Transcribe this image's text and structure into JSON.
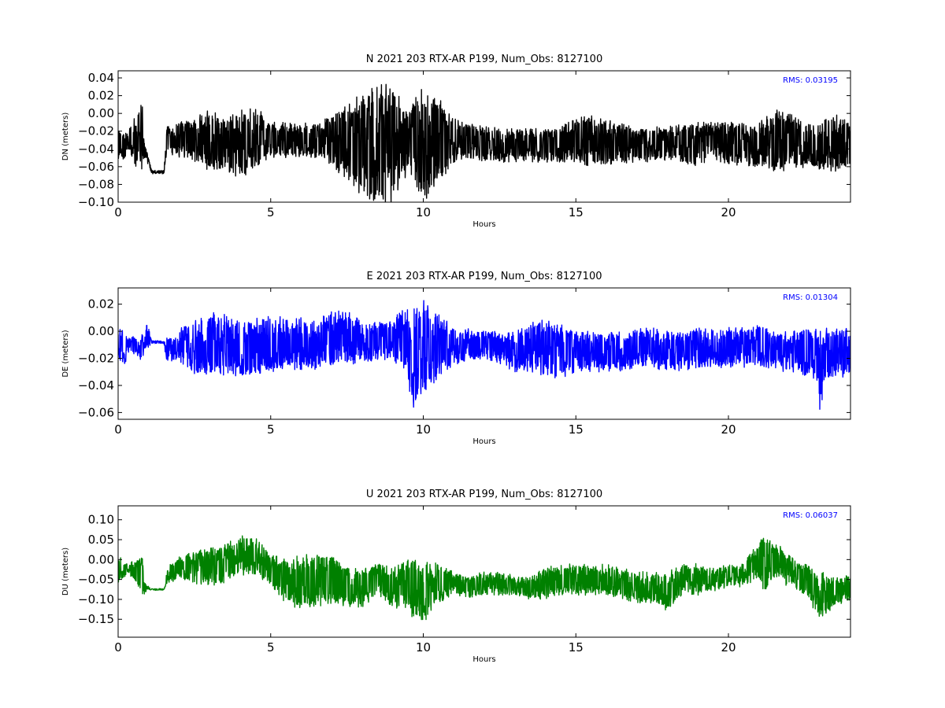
{
  "chart_data": [
    {
      "type": "line",
      "title": "N 2021 203 RTX-AR  P199, Num_Obs: 8127100",
      "xlabel": "Hours",
      "ylabel": "DN (meters)",
      "xlim": [
        0,
        24
      ],
      "ylim": [
        -0.1,
        0.048
      ],
      "xticks": [
        "0",
        "5",
        "10",
        "15",
        "20"
      ],
      "yticks": [
        "0.04",
        "0.02",
        "0.00",
        "−0.02",
        "−0.04",
        "−0.06",
        "−0.08",
        "−0.10"
      ],
      "annotation": "RMS:  0.03195",
      "color": "#000000",
      "series": [
        {
          "x": [
            0,
            0.1,
            0.2,
            0.3,
            0.8,
            0.85,
            1.1,
            1.5,
            1.6,
            2,
            2.5,
            3,
            3.5,
            4,
            4.5,
            5,
            5.5,
            6,
            6.5,
            7,
            7.5,
            8,
            8.5,
            9,
            9.5,
            10,
            10.5,
            11,
            11.5,
            12,
            12.5,
            13,
            13.5,
            14,
            14.5,
            15,
            15.5,
            16,
            16.5,
            17,
            17.5,
            18,
            18.5,
            19,
            19.5,
            20,
            20.5,
            21,
            21.5,
            22,
            22.5,
            23,
            23.5,
            24
          ],
          "center": [
            -0.04,
            -0.035,
            -0.04,
            -0.03,
            -0.03,
            -0.04,
            -0.066,
            -0.066,
            -0.03,
            -0.03,
            -0.03,
            -0.03,
            -0.035,
            -0.035,
            -0.025,
            -0.03,
            -0.03,
            -0.03,
            -0.03,
            -0.03,
            -0.03,
            -0.035,
            -0.035,
            -0.035,
            -0.03,
            -0.035,
            -0.03,
            -0.03,
            -0.03,
            -0.035,
            -0.035,
            -0.035,
            -0.035,
            -0.035,
            -0.035,
            -0.03,
            -0.03,
            -0.032,
            -0.035,
            -0.035,
            -0.035,
            -0.035,
            -0.032,
            -0.035,
            -0.03,
            -0.035,
            -0.035,
            -0.035,
            -0.03,
            -0.035,
            -0.035,
            -0.035,
            -0.035,
            -0.035
          ],
          "amp": [
            0.02,
            0.015,
            0.02,
            0.01,
            0.045,
            0.01,
            0.002,
            0.002,
            0.015,
            0.02,
            0.025,
            0.035,
            0.03,
            0.04,
            0.035,
            0.02,
            0.02,
            0.02,
            0.02,
            0.03,
            0.045,
            0.06,
            0.07,
            0.07,
            0.035,
            0.07,
            0.05,
            0.025,
            0.02,
            0.02,
            0.02,
            0.02,
            0.02,
            0.02,
            0.02,
            0.025,
            0.03,
            0.025,
            0.025,
            0.02,
            0.02,
            0.02,
            0.025,
            0.025,
            0.02,
            0.025,
            0.025,
            0.025,
            0.035,
            0.035,
            0.025,
            0.03,
            0.035,
            0.025
          ]
        }
      ]
    },
    {
      "type": "line",
      "title": "E 2021 203 RTX-AR  P199, Num_Obs: 8127100",
      "xlabel": "Hours",
      "ylabel": "DE (meters)",
      "xlim": [
        0,
        24
      ],
      "ylim": [
        -0.065,
        0.032
      ],
      "xticks": [
        "0",
        "5",
        "10",
        "15",
        "20"
      ],
      "yticks": [
        "0.02",
        "0.00",
        "−0.02",
        "−0.04",
        "−0.06"
      ],
      "annotation": "RMS:  0.01304",
      "color": "#0000ff",
      "series": [
        {
          "x": [
            0,
            0.1,
            0.2,
            0.3,
            0.8,
            0.85,
            0.95,
            1.1,
            1.5,
            1.6,
            2,
            2.5,
            3,
            3.5,
            4,
            4.5,
            5,
            5.5,
            6,
            6.5,
            7,
            7.5,
            8,
            8.5,
            9,
            9.5,
            9.7,
            10,
            10.5,
            11,
            11.5,
            12,
            12.5,
            13,
            13.5,
            14,
            14.5,
            15,
            15.5,
            16,
            16.5,
            17,
            17.5,
            18,
            18.5,
            19,
            19.5,
            20,
            20.5,
            21,
            21.5,
            22,
            22.5,
            22.8,
            23,
            23.2,
            23.5,
            24
          ],
          "center": [
            -0.012,
            -0.01,
            -0.015,
            -0.01,
            -0.012,
            -0.01,
            -0.003,
            -0.008,
            -0.008,
            -0.015,
            -0.01,
            -0.012,
            -0.01,
            -0.012,
            -0.012,
            -0.012,
            -0.01,
            -0.008,
            -0.01,
            -0.01,
            -0.005,
            -0.005,
            -0.008,
            -0.008,
            -0.006,
            -0.01,
            -0.02,
            -0.01,
            -0.012,
            -0.01,
            -0.01,
            -0.01,
            -0.012,
            -0.015,
            -0.012,
            -0.012,
            -0.015,
            -0.015,
            -0.015,
            -0.015,
            -0.015,
            -0.012,
            -0.012,
            -0.015,
            -0.015,
            -0.012,
            -0.012,
            -0.012,
            -0.012,
            -0.01,
            -0.015,
            -0.015,
            -0.015,
            -0.015,
            -0.03,
            -0.015,
            -0.015,
            -0.015
          ],
          "amp": [
            0.018,
            0.012,
            0.015,
            0.005,
            0.01,
            0.003,
            0.01,
            0.001,
            0.001,
            0.01,
            0.012,
            0.02,
            0.025,
            0.025,
            0.02,
            0.022,
            0.022,
            0.02,
            0.02,
            0.018,
            0.022,
            0.02,
            0.015,
            0.015,
            0.015,
            0.03,
            0.04,
            0.035,
            0.025,
            0.015,
            0.012,
            0.01,
            0.012,
            0.015,
            0.018,
            0.022,
            0.02,
            0.015,
            0.015,
            0.015,
            0.015,
            0.015,
            0.015,
            0.015,
            0.015,
            0.015,
            0.015,
            0.015,
            0.015,
            0.015,
            0.015,
            0.015,
            0.018,
            0.02,
            0.03,
            0.02,
            0.018,
            0.02
          ]
        }
      ]
    },
    {
      "type": "line",
      "title": "U 2021 203 RTX-AR  P199, Num_Obs: 8127100",
      "xlabel": "Hours",
      "ylabel": "DU (meters)",
      "xlim": [
        0,
        24
      ],
      "ylim": [
        -0.195,
        0.135
      ],
      "xticks": [
        "0",
        "5",
        "10",
        "15",
        "20"
      ],
      "yticks": [
        "0.10",
        "0.05",
        "0.00",
        "−0.05",
        "−0.10",
        "−0.15"
      ],
      "annotation": "RMS:  0.06037",
      "color": "#008000",
      "series": [
        {
          "x": [
            0,
            0.1,
            0.2,
            0.3,
            0.8,
            0.85,
            0.95,
            1.1,
            1.5,
            1.6,
            2,
            2.5,
            3,
            3.5,
            4,
            4.5,
            5,
            5.5,
            6,
            6.5,
            7,
            7.5,
            8,
            8.5,
            9,
            9.5,
            10,
            10.5,
            11,
            11.5,
            12,
            12.5,
            13,
            13.5,
            14,
            14.5,
            15,
            15.5,
            16,
            16.5,
            17,
            17.5,
            18,
            18.5,
            19,
            19.5,
            20,
            20.5,
            21,
            21.2,
            21.5,
            22,
            22.5,
            23,
            23.5,
            24
          ],
          "center": [
            -0.03,
            -0.02,
            -0.03,
            -0.02,
            -0.04,
            -0.07,
            -0.07,
            -0.075,
            -0.075,
            -0.04,
            -0.02,
            -0.02,
            -0.02,
            -0.01,
            0.01,
            0.01,
            -0.03,
            -0.05,
            -0.06,
            -0.05,
            -0.05,
            -0.07,
            -0.07,
            -0.05,
            -0.07,
            -0.07,
            -0.08,
            -0.06,
            -0.06,
            -0.07,
            -0.06,
            -0.06,
            -0.065,
            -0.07,
            -0.06,
            -0.05,
            -0.05,
            -0.05,
            -0.05,
            -0.06,
            -0.07,
            -0.07,
            -0.08,
            -0.05,
            -0.05,
            -0.05,
            -0.04,
            -0.04,
            0.0,
            -0.01,
            0.0,
            -0.03,
            -0.05,
            -0.09,
            -0.08,
            -0.07
          ],
          "amp": [
            0.03,
            0.03,
            0.02,
            0.01,
            0.05,
            0.02,
            0.005,
            0.002,
            0.002,
            0.02,
            0.03,
            0.04,
            0.05,
            0.05,
            0.05,
            0.05,
            0.04,
            0.06,
            0.07,
            0.07,
            0.06,
            0.05,
            0.05,
            0.04,
            0.05,
            0.07,
            0.08,
            0.05,
            0.03,
            0.03,
            0.03,
            0.03,
            0.025,
            0.03,
            0.04,
            0.04,
            0.04,
            0.04,
            0.04,
            0.04,
            0.04,
            0.04,
            0.05,
            0.04,
            0.04,
            0.03,
            0.03,
            0.03,
            0.05,
            0.08,
            0.05,
            0.04,
            0.04,
            0.06,
            0.04,
            0.03
          ]
        }
      ]
    }
  ]
}
